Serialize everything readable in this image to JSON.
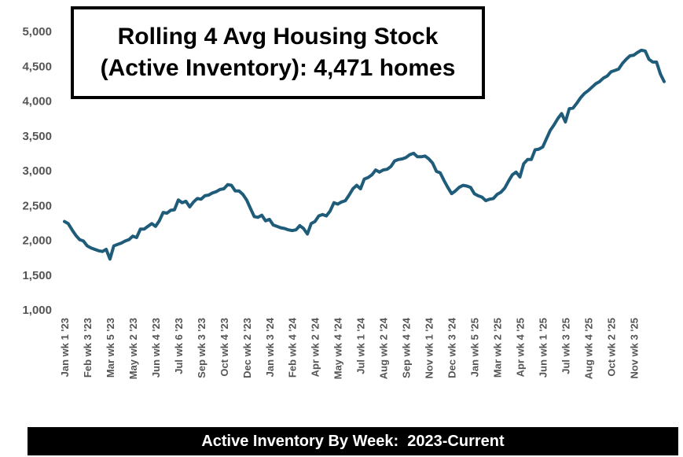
{
  "chart_data": {
    "type": "line",
    "title": [
      "Rolling 4 Avg Housing Stock",
      "(Active Inventory): 4,471 homes"
    ],
    "footer": "Active Inventory By Week:  2023-Current",
    "ylim": [
      1000,
      5000
    ],
    "yticks": [
      "1,000",
      "1,500",
      "2,000",
      "2,500",
      "3,000",
      "3,500",
      "4,000",
      "4,500",
      "5,000"
    ],
    "ytick_values": [
      1000,
      1500,
      2000,
      2500,
      3000,
      3500,
      4000,
      4500,
      5000
    ],
    "grid": false,
    "legend": "none",
    "line_color": "#1f5c7a",
    "xtick_labels": [
      "Jan wk 1 '23",
      "Feb wk 3 '23",
      "Mar wk 5 '23",
      "May wk 2 '23",
      "Jun wk 4 '23",
      "Jul wk 6 '23",
      "Sep wk 3 '23",
      "Oct wk 4 '23",
      "Dec wk 2 '23",
      "Jan wk 3 '24",
      "Feb wk 4 '24",
      "Apr wk 2 '24",
      "May wk 4 '24",
      "Jul wk 1 '24",
      "Aug wk 2 '24",
      "Sep wk 4 '24",
      "Nov wk 1 '24",
      "Dec wk 3 '24",
      "Jan wk 5 '25",
      "Mar wk 2 '25",
      "Apr wk 4 '25",
      "Jun wk 1 '25",
      "Jul wk 3 '25",
      "Aug wk 4 '25",
      "Oct wk 2 '25",
      "Nov wk 3 '25"
    ],
    "xtick_week_index": [
      0,
      6,
      12,
      18,
      24,
      30,
      36,
      42,
      48,
      54,
      60,
      66,
      72,
      78,
      84,
      90,
      96,
      102,
      108,
      114,
      120,
      126,
      132,
      138,
      144,
      150
    ],
    "values": [
      2270,
      2240,
      2150,
      2070,
      2010,
      1990,
      1920,
      1890,
      1870,
      1850,
      1840,
      1870,
      1730,
      1920,
      1940,
      1960,
      1990,
      2010,
      2060,
      2040,
      2160,
      2160,
      2200,
      2240,
      2200,
      2280,
      2400,
      2390,
      2430,
      2440,
      2580,
      2540,
      2560,
      2480,
      2550,
      2600,
      2590,
      2640,
      2650,
      2680,
      2700,
      2730,
      2740,
      2800,
      2790,
      2710,
      2710,
      2660,
      2580,
      2460,
      2340,
      2330,
      2360,
      2280,
      2300,
      2220,
      2200,
      2180,
      2170,
      2150,
      2140,
      2150,
      2210,
      2170,
      2090,
      2240,
      2270,
      2350,
      2370,
      2350,
      2420,
      2540,
      2520,
      2550,
      2570,
      2650,
      2740,
      2790,
      2740,
      2880,
      2900,
      2940,
      3010,
      2980,
      3010,
      3020,
      3060,
      3140,
      3160,
      3170,
      3190,
      3230,
      3250,
      3200,
      3200,
      3210,
      3170,
      3110,
      2990,
      2970,
      2860,
      2760,
      2670,
      2710,
      2760,
      2790,
      2780,
      2760,
      2670,
      2640,
      2620,
      2570,
      2590,
      2600,
      2660,
      2690,
      2750,
      2850,
      2940,
      2980,
      2910,
      3100,
      3160,
      3160,
      3300,
      3310,
      3340,
      3460,
      3580,
      3660,
      3750,
      3820,
      3700,
      3890,
      3900,
      3970,
      4050,
      4110,
      4150,
      4200,
      4250,
      4280,
      4330,
      4360,
      4420,
      4440,
      4460,
      4540,
      4600,
      4650,
      4660,
      4700,
      4730,
      4720,
      4600,
      4560,
      4560,
      4390,
      4280
    ]
  }
}
